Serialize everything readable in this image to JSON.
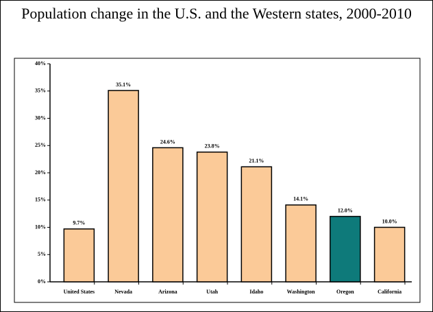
{
  "chart_data": {
    "type": "bar",
    "title": "Population change in the U.S. and the Western states, 2000-2010",
    "categories": [
      "United States",
      "Nevada",
      "Arizona",
      "Utah",
      "Idaho",
      "Washington",
      "Oregon",
      "California"
    ],
    "values": [
      9.7,
      35.1,
      24.6,
      23.8,
      21.1,
      14.1,
      12.0,
      10.0
    ],
    "value_labels": [
      "9.7%",
      "35.1%",
      "24.6%",
      "23.8%",
      "21.1%",
      "14.1%",
      "12.0%",
      "10.0%"
    ],
    "colors": [
      "#fbca98",
      "#fbca98",
      "#fbca98",
      "#fbca98",
      "#fbca98",
      "#fbca98",
      "#0e7a7a",
      "#fbca98"
    ],
    "ylim": [
      0,
      40
    ],
    "yticks": [
      {
        "value": 0,
        "label": "0%"
      },
      {
        "value": 5,
        "label": "5%"
      },
      {
        "value": 10,
        "label": "10%"
      },
      {
        "value": 15,
        "label": "15%"
      },
      {
        "value": 20,
        "label": "20%"
      },
      {
        "value": 25,
        "label": "25%"
      },
      {
        "value": 30,
        "label": "30%"
      },
      {
        "value": 35,
        "label": "35%"
      },
      {
        "value": 40,
        "label": "40%"
      }
    ],
    "grid": false
  }
}
